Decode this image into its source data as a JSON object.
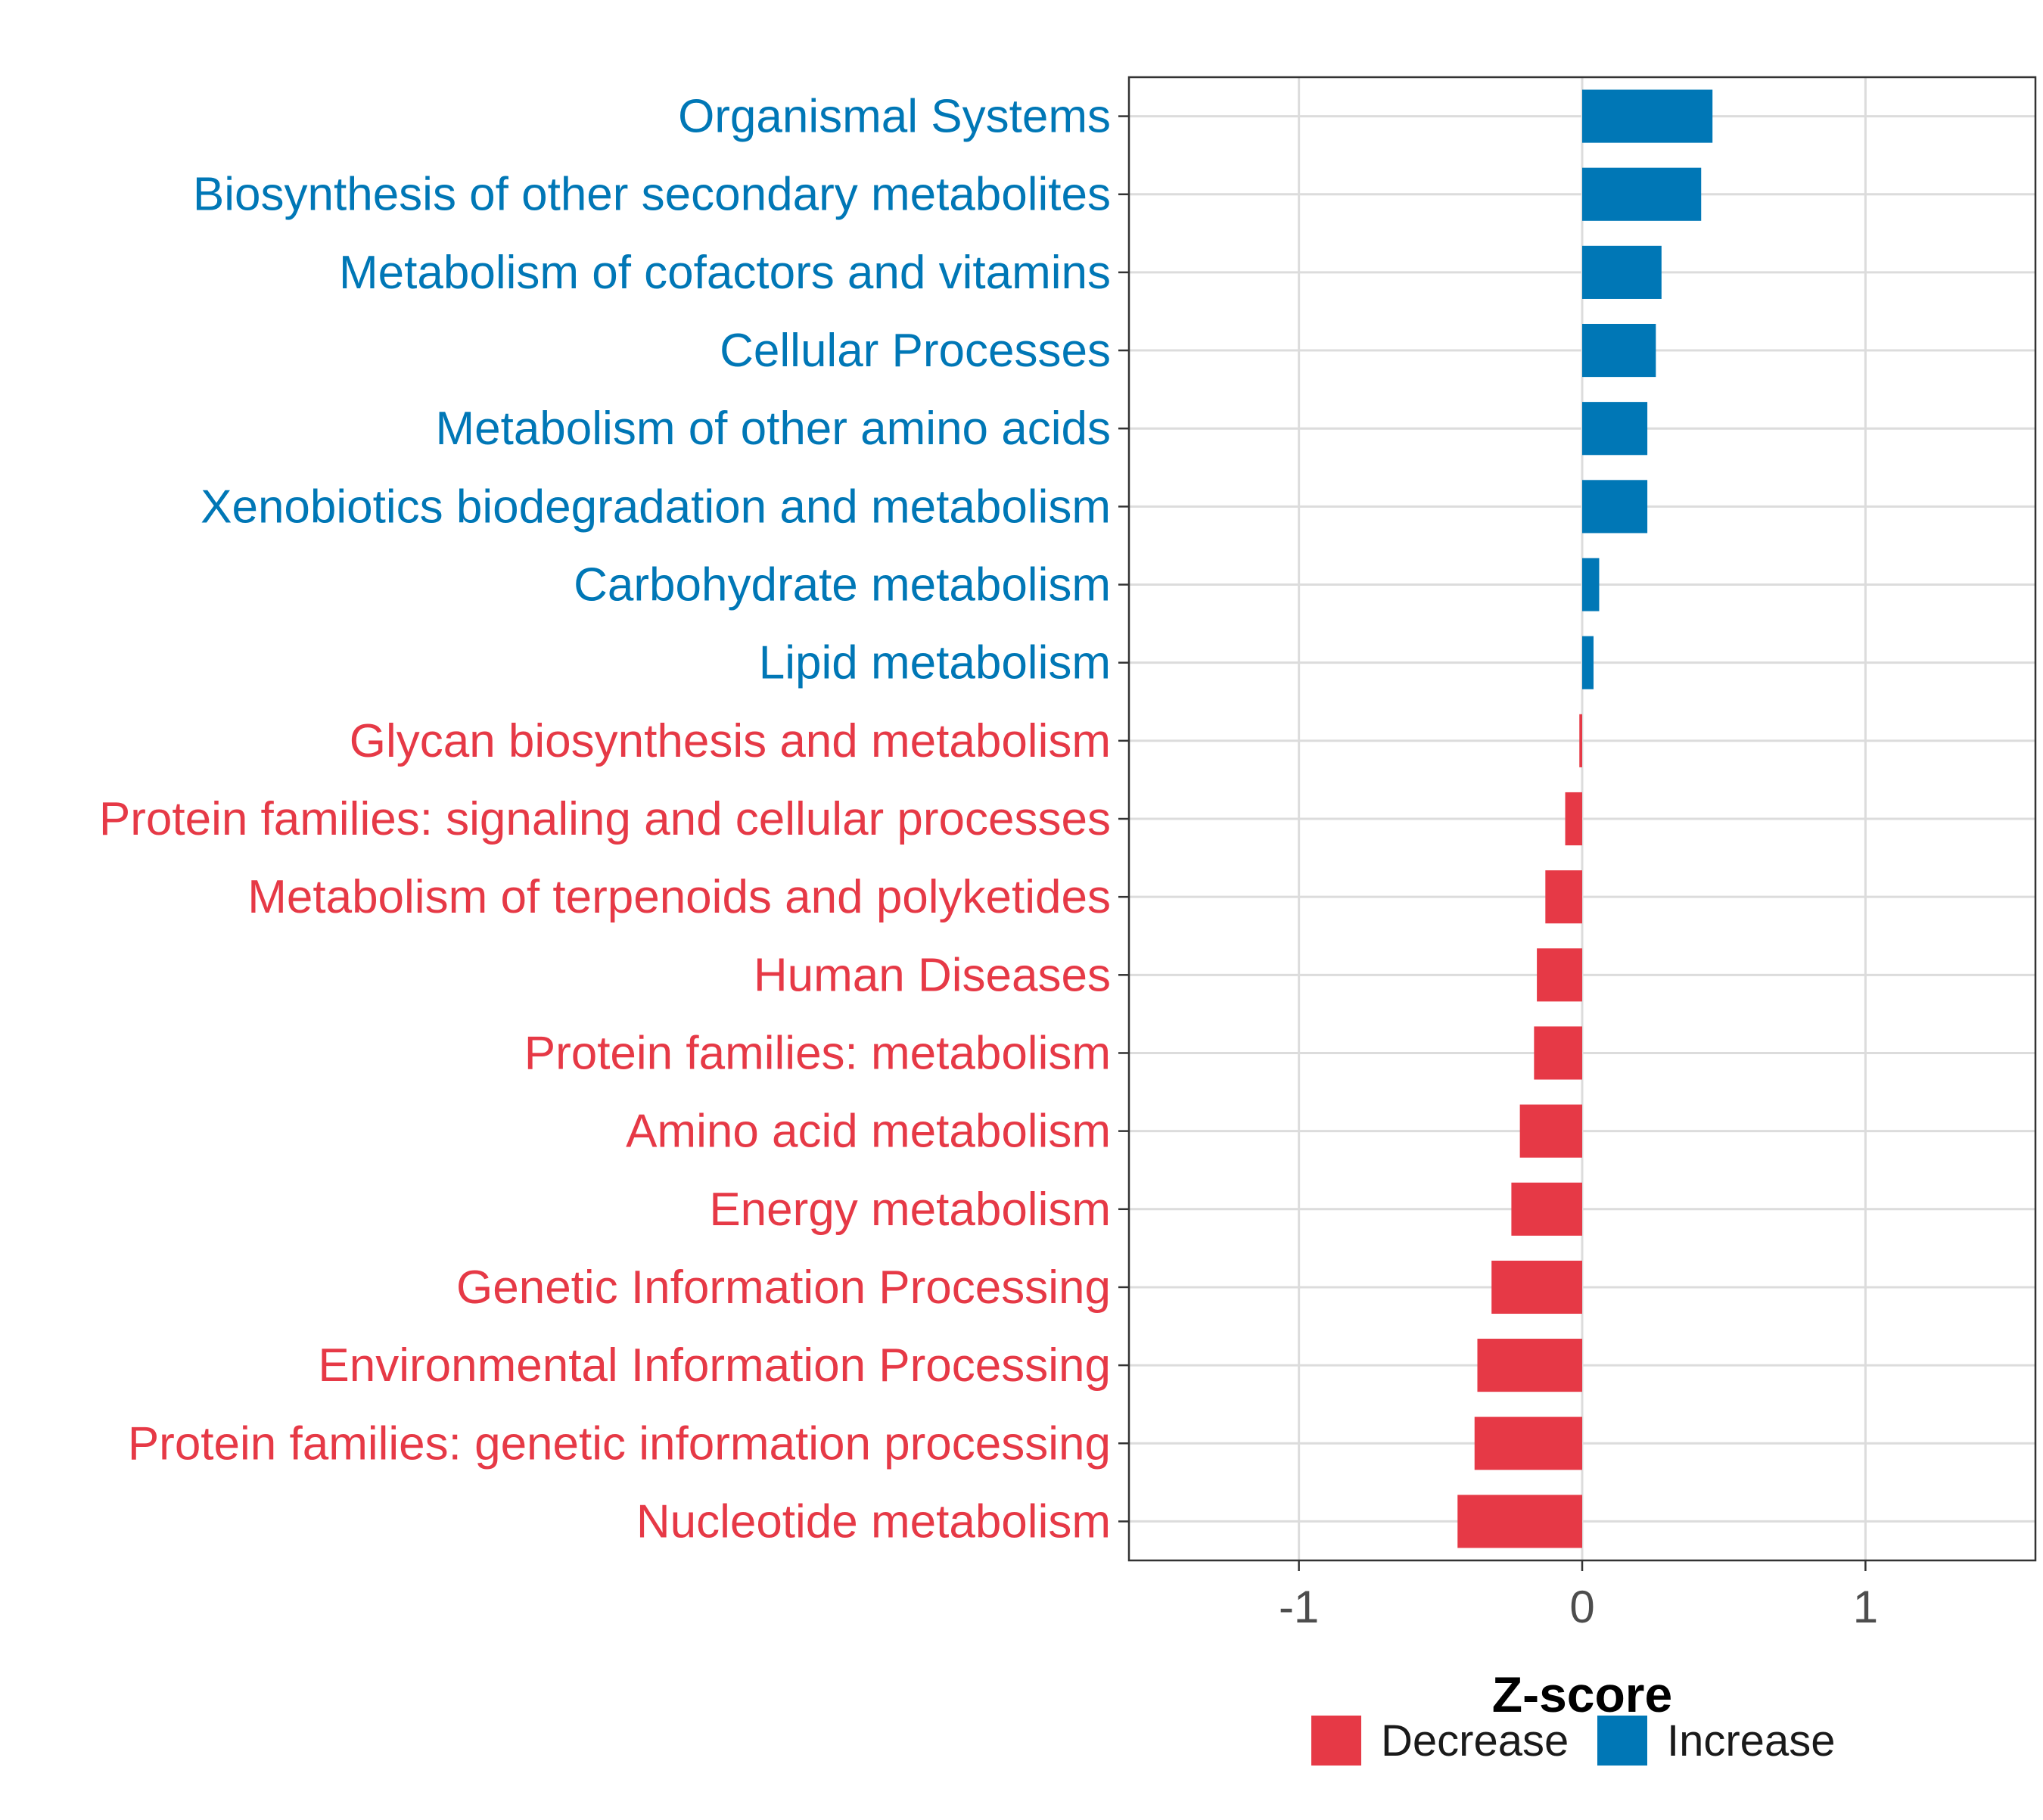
{
  "chart_data": {
    "type": "bar",
    "orientation": "horizontal",
    "xlabel": "Z-score",
    "xlim": [
      -1.6,
      1.6
    ],
    "xticks": [
      -1,
      0,
      1
    ],
    "xtick_labels": [
      "-1",
      "0",
      "1"
    ],
    "grid": true,
    "categories": [
      "Organismal Systems",
      "Biosynthesis of other secondary metabolites",
      "Metabolism of cofactors and vitamins",
      "Cellular Processes",
      "Metabolism of other amino acids",
      "Xenobiotics biodegradation and metabolism",
      "Carbohydrate metabolism",
      "Lipid metabolism",
      "Glycan biosynthesis and metabolism",
      "Protein families: signaling and cellular processes",
      "Metabolism of terpenoids and polyketides",
      "Human Diseases",
      "Protein families: metabolism",
      "Amino acid metabolism",
      "Energy metabolism",
      "Genetic Information Processing",
      "Environmental Information Processing",
      "Protein families: genetic information processing",
      "Nucleotide metabolism"
    ],
    "values": [
      0.46,
      0.42,
      0.28,
      0.26,
      0.23,
      0.23,
      0.06,
      0.04,
      -0.01,
      -0.06,
      -0.13,
      -0.16,
      -0.17,
      -0.22,
      -0.25,
      -0.32,
      -0.37,
      -0.38,
      -0.44
    ],
    "groups": [
      "Increase",
      "Increase",
      "Increase",
      "Increase",
      "Increase",
      "Increase",
      "Increase",
      "Increase",
      "Decrease",
      "Decrease",
      "Decrease",
      "Decrease",
      "Decrease",
      "Decrease",
      "Decrease",
      "Decrease",
      "Decrease",
      "Decrease",
      "Decrease"
    ],
    "legend": {
      "position": "bottom",
      "entries": [
        {
          "label": "Decrease",
          "color": "#E63946"
        },
        {
          "label": "Increase",
          "color": "#0077B6"
        }
      ]
    },
    "colors": {
      "Decrease": "#E63946",
      "Increase": "#0077B6"
    }
  }
}
